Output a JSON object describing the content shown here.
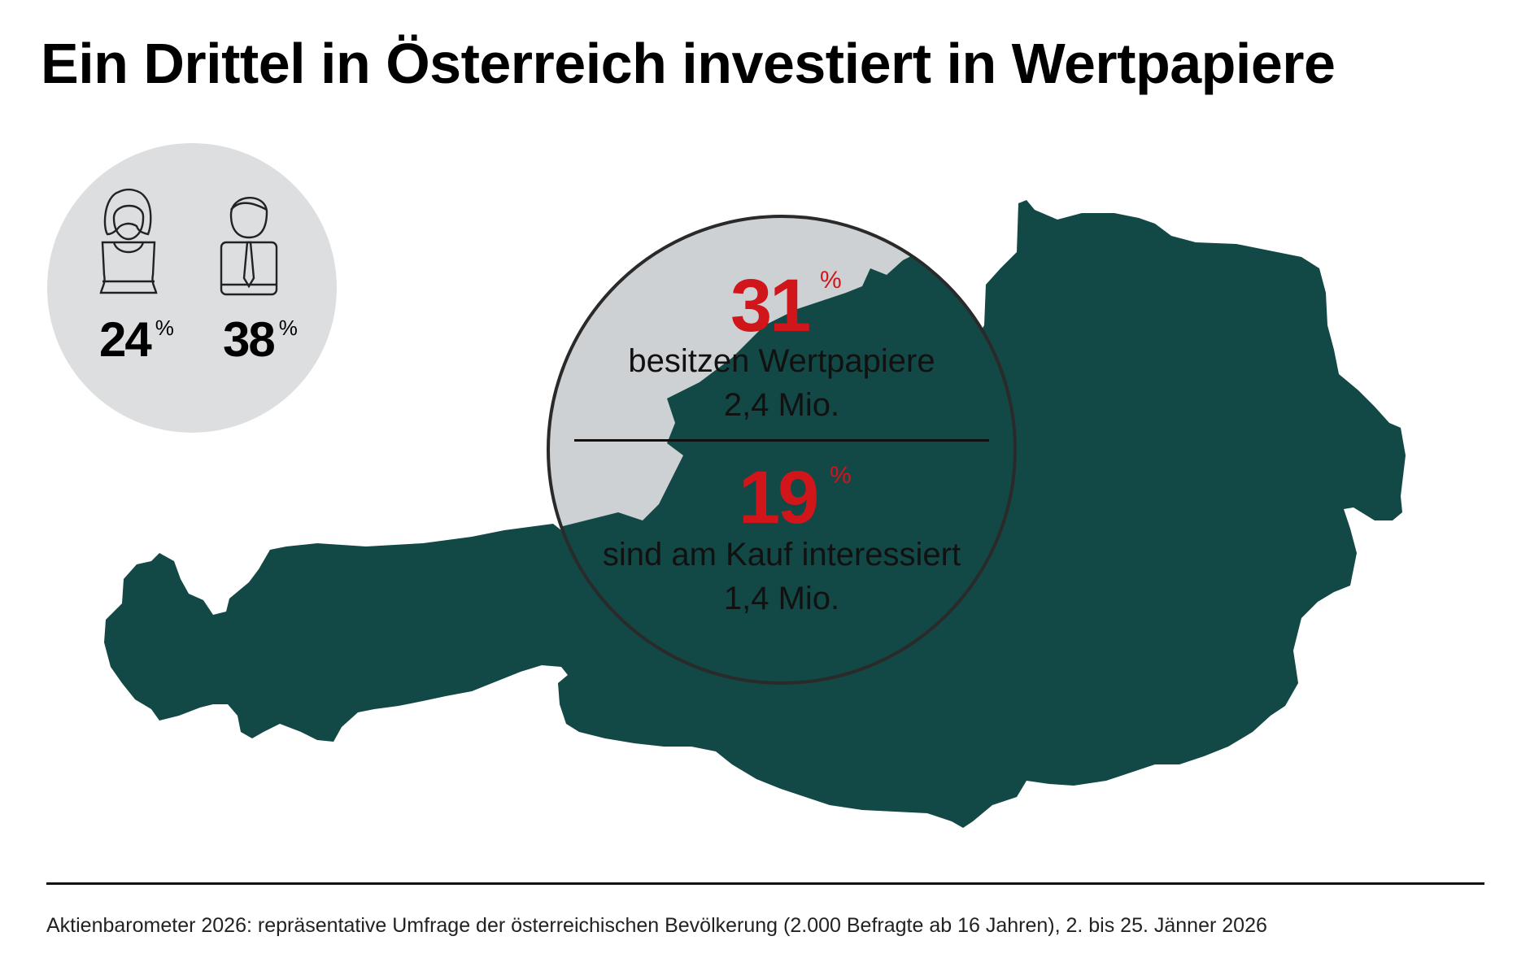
{
  "title": "Ein Drittel in Österreich investiert in Wertpapiere",
  "colors": {
    "map": "#124845",
    "lens_fill": "#cdd1d4",
    "gender_circle": "#dcdee0",
    "accent_red": "#d0151b"
  },
  "gender": {
    "female": {
      "icon": "woman-icon",
      "value": "24",
      "unit": "%"
    },
    "male": {
      "icon": "man-icon",
      "value": "38",
      "unit": "%"
    }
  },
  "owners": {
    "value": "31",
    "unit": "%",
    "label": "besitzen Wertpapiere",
    "count": "2,4 Mio."
  },
  "interested": {
    "value": "19",
    "unit": "%",
    "label": "sind am Kauf interessiert",
    "count": "1,4 Mio."
  },
  "source": "Aktienbarometer 2026: repräsentative Umfrage der österreichischen Bevölkerung (2.000 Befragte ab 16 Jahren), 2. bis 25. Jänner 2026"
}
